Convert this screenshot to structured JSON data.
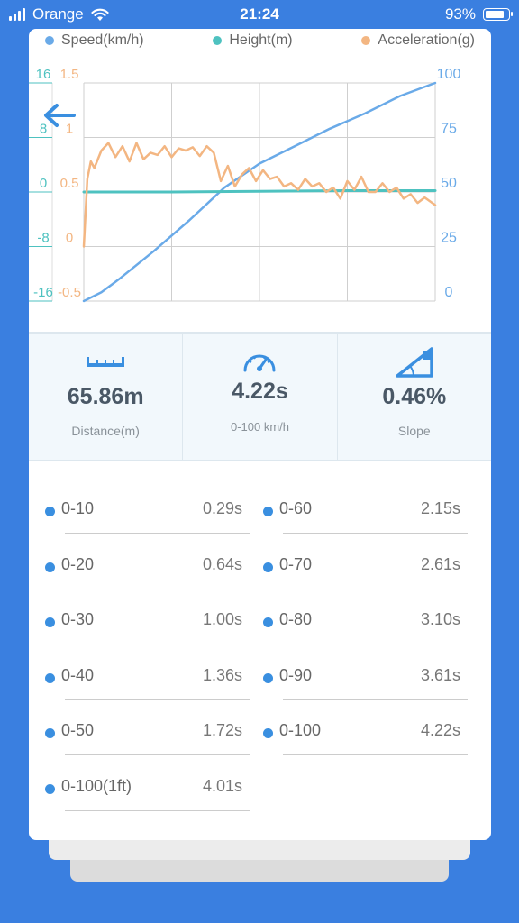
{
  "status_bar": {
    "carrier": "Orange",
    "time": "21:24",
    "battery": "93%",
    "battery_level": 0.93
  },
  "legend": [
    {
      "label": "Speed(km/h)",
      "color": "#6aaae8"
    },
    {
      "label": "Height(m)",
      "color": "#4ec2c0"
    },
    {
      "label": "Acceleration(g)",
      "color": "#f3b682"
    }
  ],
  "chart_data": {
    "type": "line",
    "series": [
      {
        "name": "Speed(km/h)",
        "color": "#6aaae8",
        "axis": "right",
        "ylim": [
          0,
          100
        ],
        "x": [
          0,
          0.05,
          0.1,
          0.2,
          0.3,
          0.4,
          0.5,
          0.6,
          0.7,
          0.8,
          0.9,
          1.0
        ],
        "y": [
          0,
          4,
          10,
          23,
          37,
          52,
          63,
          71,
          79,
          86,
          94,
          100
        ]
      },
      {
        "name": "Height(m)",
        "color": "#4ec2c0",
        "axis": "left-outer",
        "ylim": [
          -16,
          16
        ],
        "x": [
          0,
          0.25,
          0.5,
          0.75,
          1.0
        ],
        "y": [
          0,
          0,
          0.1,
          0.2,
          0.2
        ]
      },
      {
        "name": "Acceleration(g)",
        "color": "#f3b682",
        "axis": "left-inner",
        "ylim": [
          -0.5,
          1.5
        ],
        "x": [
          0,
          0.01,
          0.02,
          0.03,
          0.05,
          0.07,
          0.09,
          0.11,
          0.13,
          0.15,
          0.17,
          0.19,
          0.21,
          0.23,
          0.25,
          0.27,
          0.29,
          0.31,
          0.33,
          0.35,
          0.37,
          0.39,
          0.41,
          0.43,
          0.45,
          0.47,
          0.49,
          0.51,
          0.53,
          0.55,
          0.57,
          0.59,
          0.61,
          0.63,
          0.65,
          0.67,
          0.69,
          0.71,
          0.73,
          0.75,
          0.77,
          0.79,
          0.81,
          0.83,
          0.85,
          0.87,
          0.89,
          0.91,
          0.93,
          0.95,
          0.97,
          1.0
        ],
        "y": [
          0,
          0.62,
          0.78,
          0.72,
          0.88,
          0.95,
          0.82,
          0.92,
          0.78,
          0.95,
          0.8,
          0.86,
          0.84,
          0.92,
          0.82,
          0.9,
          0.88,
          0.91,
          0.83,
          0.92,
          0.86,
          0.6,
          0.74,
          0.55,
          0.66,
          0.72,
          0.6,
          0.7,
          0.62,
          0.64,
          0.55,
          0.58,
          0.52,
          0.62,
          0.55,
          0.58,
          0.5,
          0.54,
          0.44,
          0.6,
          0.52,
          0.64,
          0.5,
          0.5,
          0.58,
          0.5,
          0.54,
          0.44,
          0.48,
          0.4,
          0.45,
          0.38
        ]
      }
    ],
    "left_outer_ticks": [
      "16",
      "8",
      "0",
      "-8",
      "-16"
    ],
    "left_inner_ticks": [
      "1.5",
      "1",
      "0.5",
      "0",
      "-0.5"
    ],
    "right_ticks": [
      "100",
      "75",
      "50",
      "25",
      "0"
    ],
    "grid": true
  },
  "stats": [
    {
      "icon": "ruler-icon",
      "value": "65.86m",
      "label": "Distance(m)"
    },
    {
      "icon": "speedometer-icon",
      "value": "4.22s",
      "label": "0-100 km/h"
    },
    {
      "icon": "slope-icon",
      "value": "0.46%",
      "label": "Slope"
    }
  ],
  "results": [
    {
      "name": "0-10",
      "time": "0.29s"
    },
    {
      "name": "0-60",
      "time": "2.15s"
    },
    {
      "name": "0-20",
      "time": "0.64s"
    },
    {
      "name": "0-70",
      "time": "2.61s"
    },
    {
      "name": "0-30",
      "time": "1.00s"
    },
    {
      "name": "0-80",
      "time": "3.10s"
    },
    {
      "name": "0-40",
      "time": "1.36s"
    },
    {
      "name": "0-90",
      "time": "3.61s"
    },
    {
      "name": "0-50",
      "time": "1.72s"
    },
    {
      "name": "0-100",
      "time": "4.22s"
    },
    {
      "name": "0-100(1ft)",
      "time": "4.01s"
    }
  ]
}
